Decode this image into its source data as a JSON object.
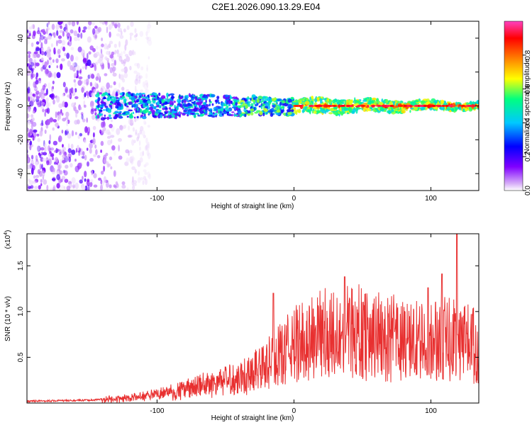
{
  "title": "C2E1.2026.090.13.29.E04",
  "chart_data": [
    {
      "type": "heatmap",
      "name": "spectrogram",
      "xlabel": "Height of straight line (km)",
      "ylabel": "Frequency (Hz)",
      "xlim": [
        -195,
        135
      ],
      "ylim": [
        -50,
        50
      ],
      "xticks": [
        -100,
        0,
        100
      ],
      "yticks": [
        -40,
        -20,
        0,
        20,
        40
      ],
      "colorbar": {
        "label": "Normalized spectral amplitude",
        "range": [
          0,
          1
        ],
        "ticks": [
          0.0,
          0.2,
          0.4,
          0.6,
          0.8
        ],
        "tick_labels": [
          "0.0",
          "0.2",
          "0.4",
          "0.6",
          "0.8"
        ],
        "colormap": [
          "#ffffff",
          "#d8b0f8",
          "#8000ff",
          "#0000ff",
          "#00c8ff",
          "#00ff80",
          "#ffff00",
          "#ff8000",
          "#ff0000",
          "#ff40c0"
        ]
      },
      "features": {
        "noise_region_x": [
          -195,
          -125
        ],
        "noise_amplitude": 0.25,
        "signal_band_center_hz": 0,
        "signal_band_halfwidth_hz_near": 8,
        "signal_band_halfwidth_hz_far": 2
      }
    },
    {
      "type": "line",
      "name": "snr",
      "xlabel": "Height of straight line (km)",
      "ylabel": "SNR (10 * v/v)",
      "yscale_label": "(x10",
      "yscale_exp": "4",
      "xlim": [
        -195,
        135
      ],
      "ylim": [
        0,
        1.85
      ],
      "xticks": [
        -100,
        0,
        100
      ],
      "yticks": [
        0.5,
        1.0,
        1.5
      ],
      "ytick_labels": [
        "0.5",
        "1.0",
        "1.5"
      ],
      "series": [
        {
          "name": "SNR",
          "color": "#e83030",
          "envelope_x": [
            -195,
            -150,
            -125,
            -100,
            -80,
            -60,
            -40,
            -20,
            0,
            20,
            40,
            60,
            80,
            100,
            120,
            135
          ],
          "envelope_y": [
            0.02,
            0.03,
            0.06,
            0.12,
            0.2,
            0.28,
            0.38,
            0.55,
            0.85,
            1.0,
            1.05,
            1.0,
            0.9,
            0.9,
            0.95,
            0.85
          ],
          "peaks": [
            {
              "x": -15,
              "y": 1.2
            },
            {
              "x": 37,
              "y": 1.38
            },
            {
              "x": 98,
              "y": 1.26
            },
            {
              "x": 108,
              "y": 1.41
            },
            {
              "x": 119,
              "y": 1.85
            }
          ]
        }
      ]
    }
  ]
}
